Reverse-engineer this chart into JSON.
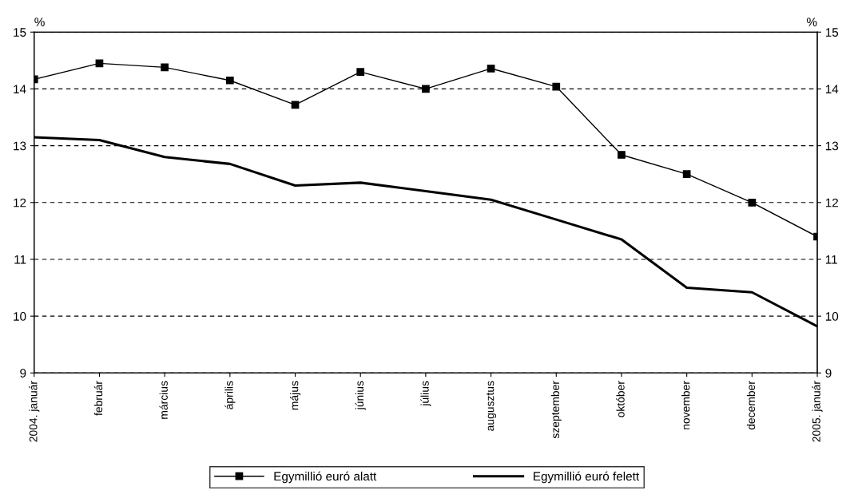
{
  "chart_data": {
    "type": "line",
    "ylabel": "%",
    "y2label": "%",
    "categories": [
      "2004. január",
      "február",
      "március",
      "április",
      "május",
      "június",
      "július",
      "augusztus",
      "szeptember",
      "október",
      "november",
      "december",
      "2005. január"
    ],
    "series": [
      {
        "name": "Egymillió euró alatt",
        "color": "#000000",
        "marker": "square",
        "values": [
          14.17,
          14.45,
          14.38,
          14.15,
          13.72,
          14.3,
          14.0,
          14.36,
          14.04,
          12.84,
          12.5,
          12.0,
          11.4
        ]
      },
      {
        "name": "Egymillió euró felett",
        "color": "#000000",
        "marker": "none",
        "values": [
          13.15,
          13.1,
          12.8,
          12.68,
          12.3,
          12.35,
          12.2,
          12.05,
          11.7,
          11.35,
          10.5,
          10.42,
          9.82
        ]
      }
    ],
    "ylim": [
      9,
      15
    ],
    "yticks": [
      9,
      10,
      11,
      12,
      13,
      14,
      15
    ],
    "y2lim": [
      9,
      15
    ],
    "y2ticks": [
      9,
      10,
      11,
      12,
      13,
      14,
      15
    ],
    "grid": "y",
    "legend": "bottom",
    "line_style": "solid"
  }
}
